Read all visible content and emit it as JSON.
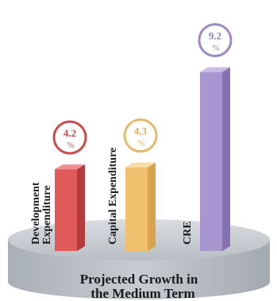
{
  "chart_data": {
    "type": "bar",
    "title": "Projected Growth in the Medium Term",
    "title_lines": [
      "Projected Growth in",
      "the Medium Term"
    ],
    "categories": [
      "Development Expenditure",
      "Capital Expenditure",
      "CRE"
    ],
    "category_label_lines": [
      [
        "Development",
        "Expenditure"
      ],
      [
        "Capital Expenditure"
      ],
      [
        "CRE"
      ]
    ],
    "values": [
      4.2,
      4.3,
      9.2
    ],
    "value_labels": [
      "4.2",
      "4.3",
      "9.2"
    ],
    "unit": "%",
    "bar_colors": [
      "#e05a5a",
      "#f1c06e",
      "#a995cf"
    ],
    "bar_top_colors": [
      "#f08f8f",
      "#f8dca6",
      "#c9bce6"
    ],
    "bar_side_colors": [
      "#b43c3c",
      "#d9a24c",
      "#8672b3"
    ],
    "circle_colors": [
      "#c94a4a",
      "#e7b86a",
      "#9a8ac4"
    ],
    "value_text_colors": [
      "#c94a4a",
      "#e2ad55",
      "#8f7fbe"
    ],
    "platform_color": "#c9ced4"
  }
}
